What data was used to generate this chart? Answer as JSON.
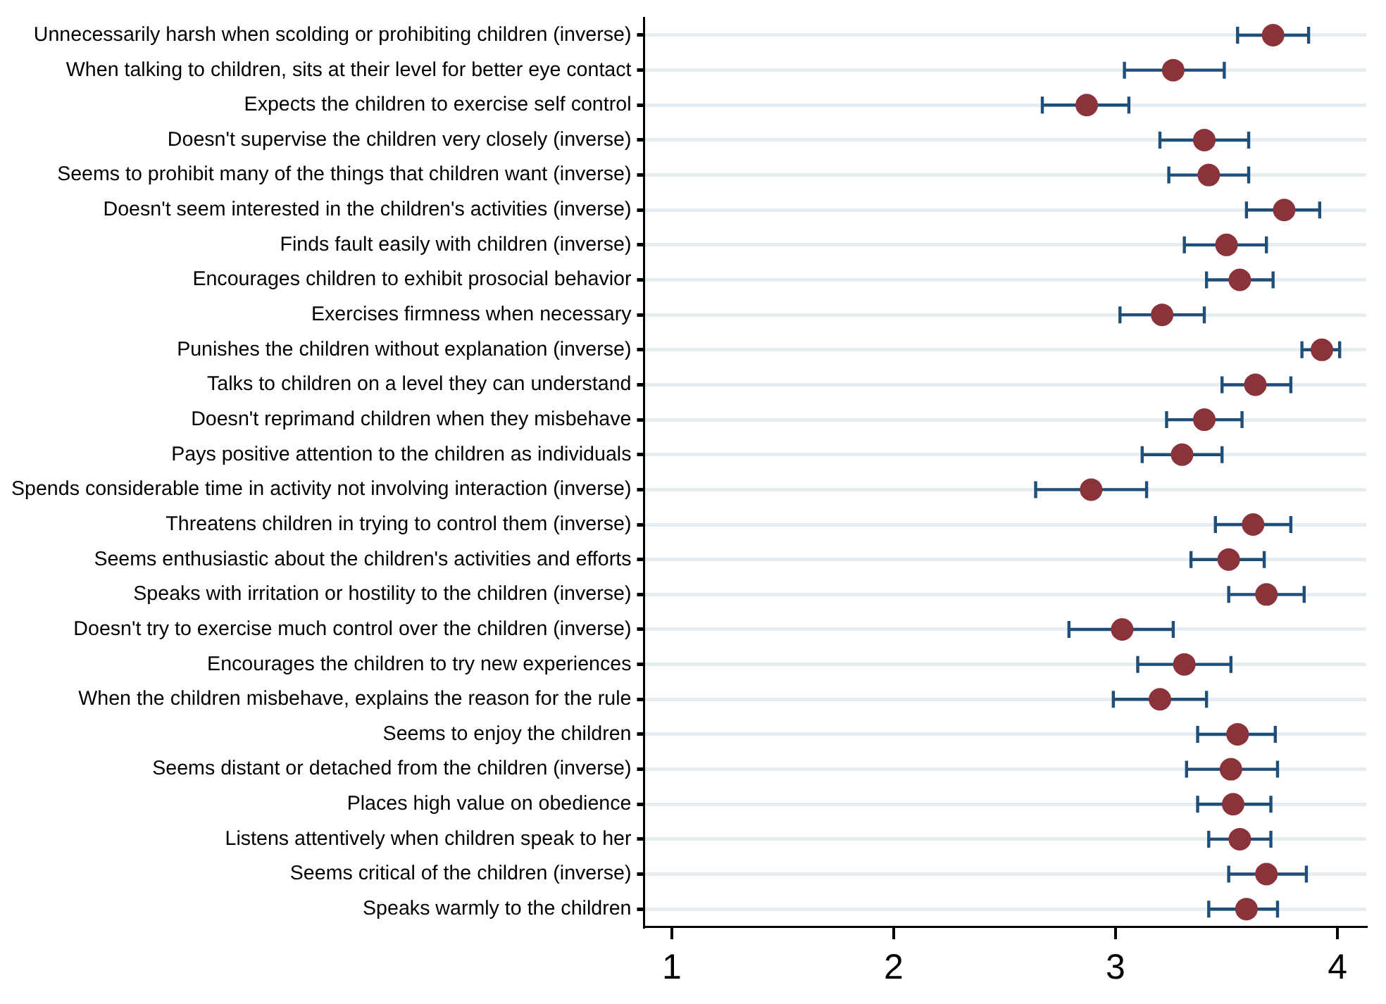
{
  "chart_data": {
    "type": "scatter",
    "orientation": "horizontal",
    "categories": [
      "Unnecessarily harsh when scolding or prohibiting children (inverse)",
      "When talking to children, sits at their level for better eye contact",
      "Expects the children to exercise self control",
      "Doesn't supervise the children very closely (inverse)",
      "Seems to prohibit many of the things that children want (inverse)",
      "Doesn't seem interested in the children's activities (inverse)",
      "Finds fault easily with children (inverse)",
      "Encourages children to exhibit prosocial behavior",
      "Exercises firmness when necessary",
      "Punishes the children without explanation (inverse)",
      "Talks to children on a level they can understand",
      "Doesn't reprimand children when they misbehave",
      "Pays positive attention to the children as individuals",
      "Spends considerable time in activity not involving interaction (inverse)",
      "Threatens children in trying to control them (inverse)",
      "Seems enthusiastic about the children's activities and efforts",
      "Speaks with irritation or hostility to the children (inverse)",
      "Doesn't try to exercise much control over the children (inverse)",
      "Encourages the children to try new experiences",
      "When the children misbehave, explains the reason for the rule",
      "Seems to enjoy the children",
      "Seems distant or detached from the children (inverse)",
      "Places high value on obedience",
      "Listens attentively when children speak to her",
      "Seems critical of the children (inverse)",
      "Speaks warmly to the children"
    ],
    "series": [
      {
        "color": "#8b333b",
        "values": [
          3.71,
          3.26,
          2.87,
          3.4,
          3.42,
          3.76,
          3.5,
          3.56,
          3.21,
          3.93,
          3.63,
          3.4,
          3.3,
          2.89,
          3.62,
          3.51,
          3.68,
          3.03,
          3.31,
          3.2,
          3.55,
          3.52,
          3.53,
          3.56,
          3.68,
          3.59
        ],
        "errors": [
          [
            3.55,
            3.87
          ],
          [
            3.04,
            3.49
          ],
          [
            2.67,
            3.06
          ],
          [
            3.2,
            3.6
          ],
          [
            3.24,
            3.6
          ],
          [
            3.59,
            3.92
          ],
          [
            3.31,
            3.68
          ],
          [
            3.41,
            3.71
          ],
          [
            3.02,
            3.4
          ],
          [
            3.84,
            4.01
          ],
          [
            3.48,
            3.79
          ],
          [
            3.23,
            3.57
          ],
          [
            3.12,
            3.48
          ],
          [
            2.64,
            3.14
          ],
          [
            3.45,
            3.79
          ],
          [
            3.34,
            3.67
          ],
          [
            3.51,
            3.85
          ],
          [
            2.79,
            3.26
          ],
          [
            3.1,
            3.52
          ],
          [
            2.99,
            3.41
          ],
          [
            3.37,
            3.72
          ],
          [
            3.32,
            3.73
          ],
          [
            3.37,
            3.7
          ],
          [
            3.42,
            3.7
          ],
          [
            3.51,
            3.86
          ],
          [
            3.42,
            3.73
          ]
        ]
      }
    ],
    "xlim": [
      0.875,
      4.13
    ],
    "xticks": [
      1,
      2,
      3,
      4
    ],
    "grid": "y",
    "legend": false,
    "marker": "circle"
  }
}
